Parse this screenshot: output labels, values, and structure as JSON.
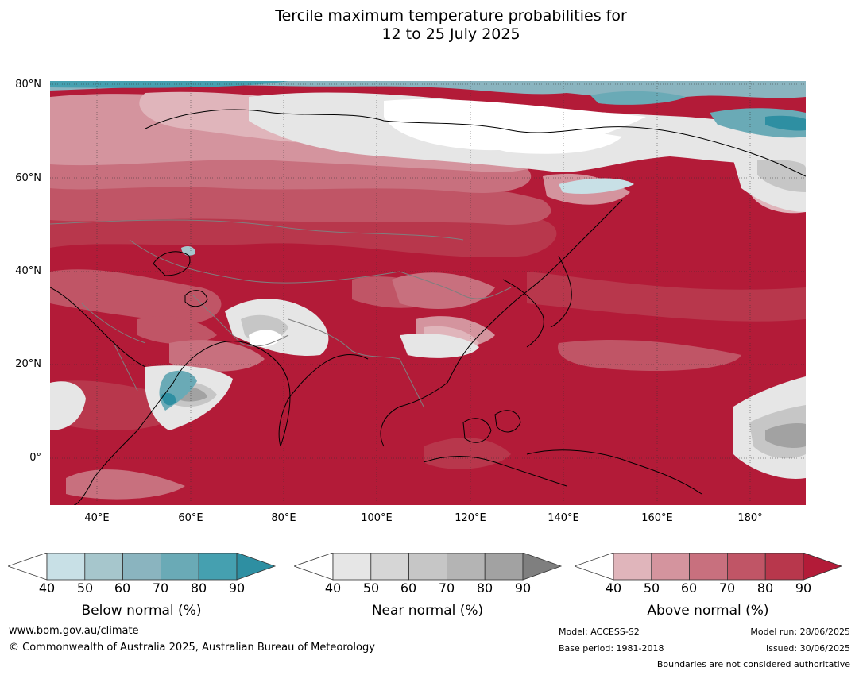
{
  "title": {
    "line1": "Tercile maximum temperature probabilities for",
    "line2": "12 to 25 July 2025"
  },
  "map": {
    "lat_labels": [
      "80°N",
      "60°N",
      "40°N",
      "20°N",
      "0°"
    ],
    "lon_labels": [
      "40°E",
      "60°E",
      "80°E",
      "100°E",
      "120°E",
      "140°E",
      "160°E",
      "180°"
    ],
    "colors": {
      "above_dominant": "#b31b38",
      "ocean_grid": "#333333",
      "coast": "#000000",
      "borders": "#7f7f7f"
    }
  },
  "legend": {
    "ticks": [
      "40",
      "50",
      "60",
      "70",
      "80",
      "90"
    ],
    "below": {
      "title": "Below normal (%)",
      "colors": [
        "#c8e0e6",
        "#a6c6cc",
        "#8ab4bf",
        "#6aaab6",
        "#45a0b0",
        "#2e8fa2"
      ]
    },
    "near": {
      "title": "Near normal (%)",
      "colors": [
        "#e6e6e6",
        "#d6d6d6",
        "#c6c6c6",
        "#b4b4b4",
        "#a2a2a2",
        "#7f7f7f"
      ]
    },
    "above": {
      "title": "Above normal (%)",
      "colors": [
        "#e0b5bb",
        "#d4949e",
        "#c8707e",
        "#c05566",
        "#b8374c",
        "#b31b38"
      ]
    }
  },
  "footer": {
    "website": "www.bom.gov.au/climate",
    "copyright": "© Commonwealth of Australia 2025, Australian Bureau of Meteorology",
    "model": "Model: ACCESS-S2",
    "base_period": "Base period: 1981-2018",
    "model_run": "Model run: 28/06/2025",
    "issued": "Issued: 30/06/2025",
    "disclaimer": "Boundaries are not considered authoritative"
  }
}
